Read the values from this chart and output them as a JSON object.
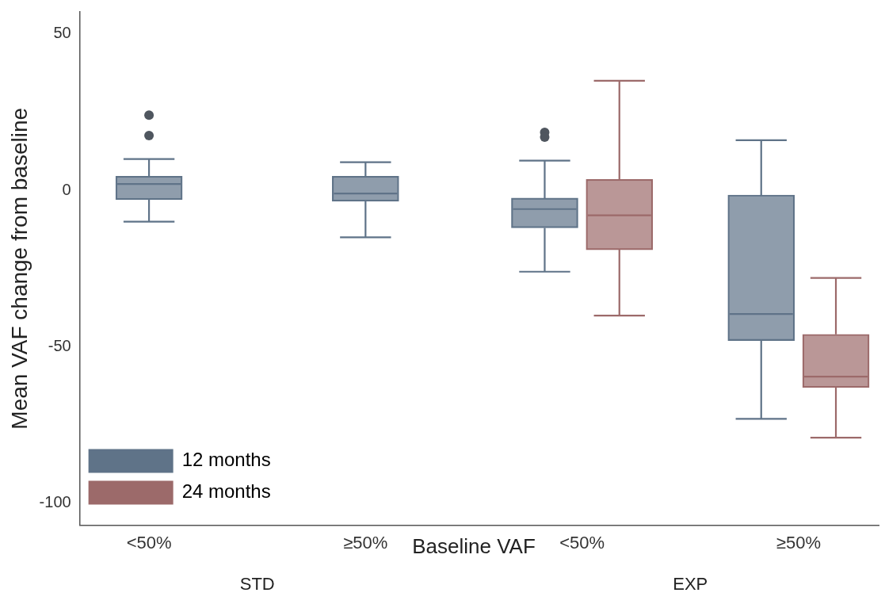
{
  "chart_data": {
    "type": "box",
    "xlabel": "Baseline VAF",
    "ylabel": "Mean VAF change from baseline",
    "categories": [
      "<50%",
      "≥50%",
      "<50%",
      "≥50%"
    ],
    "annotations": [
      "STD",
      "EXP"
    ],
    "ylim": [
      -107,
      57
    ],
    "yticks": [
      -100,
      -50,
      0,
      50
    ],
    "grid": false,
    "legend": "bottom left",
    "marker": "circle",
    "series": [
      {
        "name": "12 months",
        "color": "#5f7388",
        "boxes": [
          {
            "low": -10,
            "q1": -3,
            "median": 2,
            "q3": 4.5,
            "high": 10,
            "outliers": [
              24,
              17.5
            ]
          },
          {
            "low": -15,
            "q1": -3.5,
            "median": -1,
            "q3": 4.5,
            "high": 9
          },
          {
            "low": -26,
            "q1": -12,
            "median": -6,
            "q3": -2.5,
            "high": 9.5,
            "outliers": [
              18.5,
              17
            ]
          },
          {
            "low": -73,
            "q1": -48,
            "median": -39.5,
            "q3": -1.5,
            "high": 16
          }
        ]
      },
      {
        "name": "24 months",
        "color": "#9c6a6a",
        "boxes": [
          null,
          null,
          {
            "low": -40,
            "q1": -19,
            "median": -8,
            "q3": 3.5,
            "high": 35
          },
          {
            "low": -79,
            "q1": -63,
            "median": -59.5,
            "q3": -46,
            "high": -28
          }
        ]
      }
    ]
  }
}
